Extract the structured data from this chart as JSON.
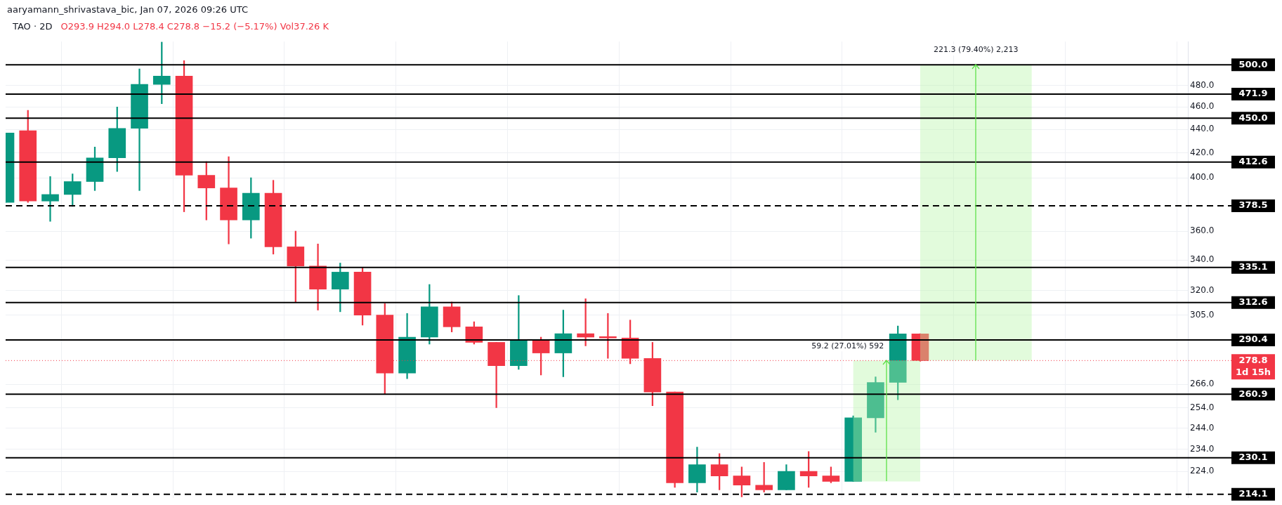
{
  "chart_data": {
    "type": "candlestick",
    "title": "TAO · 2D",
    "subtitle": "O293.9  H294.0  L278.4  C278.8  −15.2 (−5.17%)  Vol37.26 K",
    "annotations": [
      "aaryamann_shrivastava_bic, Jan 07, 2026 09:26 UTC",
      "1d 15h"
    ],
    "categories": [
      null,
      null,
      null,
      null,
      null,
      null,
      null,
      null,
      null,
      null,
      null,
      null,
      null,
      null,
      null,
      null,
      null,
      null,
      null,
      null,
      null,
      null,
      null,
      null,
      null,
      null,
      null,
      null,
      null,
      null,
      null,
      null,
      null,
      null,
      null,
      null,
      null,
      null,
      null,
      null,
      null,
      null,
      null,
      null,
      null,
      null,
      null,
      null,
      null,
      null,
      null,
      null,
      null,
      null
    ],
    "ohlc": [
      [
        381,
        437,
        381,
        437
      ],
      [
        439,
        457,
        381,
        382
      ],
      [
        382,
        401,
        367,
        387
      ],
      [
        387,
        403,
        378,
        397
      ],
      [
        397,
        425,
        390,
        416
      ],
      [
        416,
        460,
        405,
        441
      ],
      [
        441,
        496,
        390,
        481
      ],
      [
        481,
        523,
        463,
        489
      ],
      [
        489,
        504,
        374,
        402
      ],
      [
        402,
        413,
        368,
        392
      ],
      [
        392,
        417,
        351,
        368
      ],
      [
        368,
        400,
        355,
        388
      ],
      [
        388,
        398,
        344,
        349
      ],
      [
        349,
        360,
        313,
        336
      ],
      [
        336,
        351,
        308,
        321
      ],
      [
        321,
        338,
        307,
        332
      ],
      [
        332,
        335,
        299,
        305
      ],
      [
        305,
        312,
        261,
        272
      ],
      [
        272,
        306,
        269,
        292
      ],
      [
        292,
        324,
        288,
        310
      ],
      [
        310,
        313,
        295,
        298
      ],
      [
        298,
        301,
        288,
        289
      ],
      [
        289,
        289,
        254,
        276
      ],
      [
        276,
        317,
        274,
        290
      ],
      [
        290,
        292,
        271,
        283
      ],
      [
        283,
        308,
        270,
        294
      ],
      [
        294,
        315,
        287,
        292
      ],
      [
        292,
        306,
        280,
        291.5
      ],
      [
        291.5,
        302,
        277,
        280
      ],
      [
        280,
        289,
        255,
        262
      ],
      [
        262,
        262,
        217,
        219
      ],
      [
        219,
        235,
        215,
        227
      ],
      [
        227,
        232,
        216,
        222
      ],
      [
        222,
        226,
        213,
        218
      ],
      [
        218,
        228,
        215,
        216
      ],
      [
        216,
        227,
        216,
        224
      ],
      [
        224,
        233,
        217,
        222
      ],
      [
        222,
        226,
        219,
        219.6
      ],
      [
        219.6,
        250,
        219.6,
        249
      ],
      [
        249,
        270,
        242,
        267
      ],
      [
        267,
        298.5,
        258,
        293.9
      ],
      [
        293.9,
        294.0,
        278.4,
        278.8
      ],
      null,
      null,
      null,
      null,
      null,
      null,
      null,
      null,
      null,
      null,
      null,
      null
    ],
    "colors": [
      "#089981",
      "#f23645",
      "#089981",
      "#089981",
      "#089981",
      "#089981",
      "#089981",
      "#089981",
      "#f23645",
      "#f23645",
      "#f23645",
      "#089981",
      "#f23645",
      "#f23645",
      "#f23645",
      "#089981",
      "#f23645",
      "#f23645",
      "#089981",
      "#089981",
      "#f23645",
      "#f23645",
      "#f23645",
      "#089981",
      "#f23645",
      "#089981",
      "#f23645",
      "#f23645",
      "#f23645",
      "#f23645",
      "#f23645",
      "#089981",
      "#f23645",
      "#f23645",
      "#f23645",
      "#089981",
      "#f23645",
      "#f23645",
      "#089981",
      "#089981",
      "#089981",
      "#f23645",
      null,
      null,
      null,
      null,
      null,
      null,
      null,
      null,
      null,
      null,
      null,
      null
    ],
    "log": true,
    "ylim": [
      212.6,
      523.4
    ],
    "yticks": [
      {
        "value": 224,
        "label": "224.0"
      },
      {
        "value": 234,
        "label": "234.0"
      },
      {
        "value": 244,
        "label": "244.0"
      },
      {
        "value": 254,
        "label": "254.0"
      },
      {
        "value": 266,
        "label": "266.0"
      },
      {
        "value": 305,
        "label": "305.0"
      },
      {
        "value": 320,
        "label": "320.0"
      },
      {
        "value": 340,
        "label": "340.0"
      },
      {
        "value": 360,
        "label": "360.0"
      },
      {
        "value": 400,
        "label": "400.0"
      },
      {
        "value": 420,
        "label": "420.0"
      },
      {
        "value": 440,
        "label": "440.0"
      },
      {
        "value": 460,
        "label": "460.0"
      },
      {
        "value": 480,
        "label": "480.0"
      }
    ],
    "tick_labels": "y",
    "grid": true,
    "ref_lines": [
      {
        "axis": "y",
        "value": 500.0,
        "label": "500.0",
        "color": "#000000",
        "line_style": "solid"
      },
      {
        "axis": "y",
        "value": 471.9,
        "label": "471.9",
        "color": "#000000",
        "line_style": "solid"
      },
      {
        "axis": "y",
        "value": 450.0,
        "label": "450.0",
        "color": "#000000",
        "line_style": "solid"
      },
      {
        "axis": "y",
        "value": 412.6,
        "label": "412.6",
        "color": "#000000",
        "line_style": "solid"
      },
      {
        "axis": "y",
        "value": 378.5,
        "label": "378.5",
        "color": "#000000",
        "line_style": "dashed"
      },
      {
        "axis": "y",
        "value": 335.1,
        "label": "335.1",
        "color": "#000000",
        "line_style": "solid"
      },
      {
        "axis": "y",
        "value": 312.6,
        "label": "312.6",
        "color": "#000000",
        "line_style": "solid"
      },
      {
        "axis": "y",
        "value": 290.4,
        "label": "290.4",
        "color": "#000000",
        "line_style": "solid"
      },
      {
        "axis": "y",
        "value": 278.8,
        "label": "278.8",
        "color": "#f23645",
        "line_style": "dotted"
      },
      {
        "axis": "y",
        "value": 260.9,
        "label": "260.9",
        "color": "#000000",
        "line_style": "solid"
      },
      {
        "axis": "y",
        "value": 230.1,
        "label": "230.1",
        "color": "#000000",
        "line_style": "solid"
      },
      {
        "axis": "y",
        "value": 214.1,
        "label": "214.1",
        "color": "#000000",
        "line_style": "dashed"
      }
    ],
    "bands": [
      {
        "axis": "y",
        "from": 219.6,
        "to": 278.8,
        "label": "59.2 (27.01%) 592",
        "color": "#b7f5a8"
      },
      {
        "axis": "y",
        "from": 278.8,
        "to": 500.1,
        "label": "221.3 (79.40%) 2,213",
        "color": "#b7f5a8"
      }
    ]
  }
}
